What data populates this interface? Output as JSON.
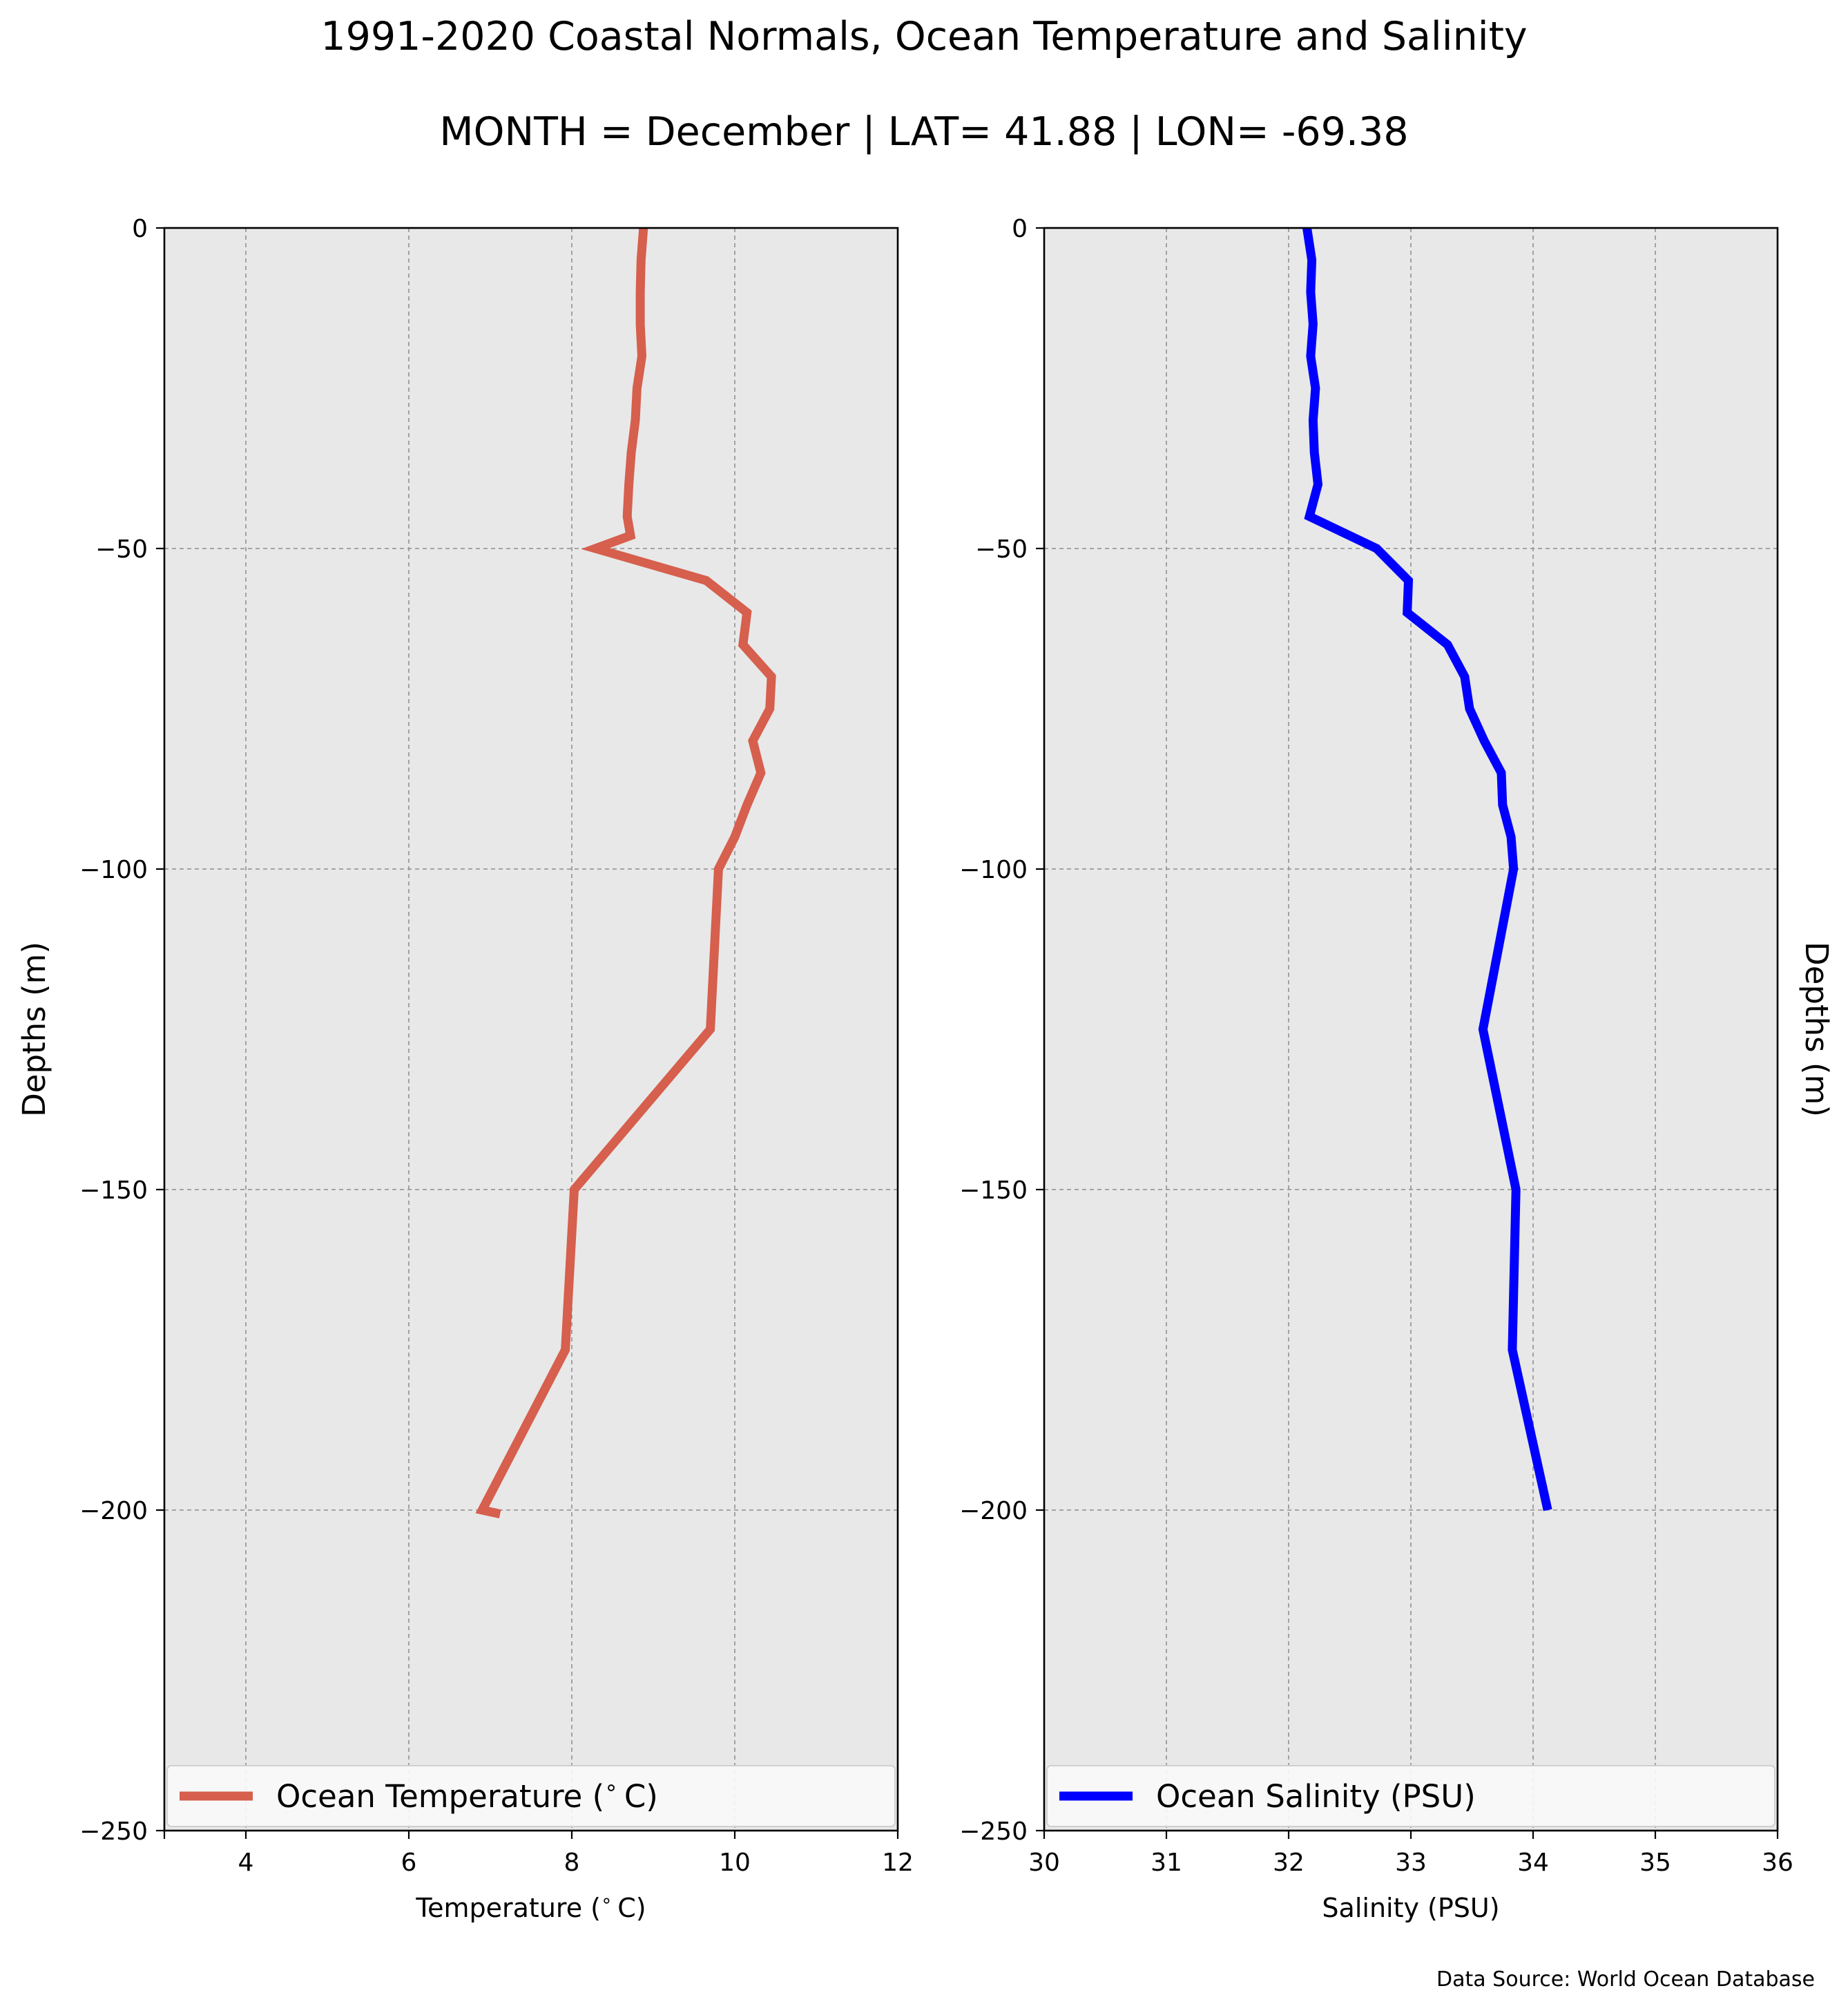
{
  "figure": {
    "title": "1991-2020 Coastal Normals, Ocean Temperature and Salinity",
    "subtitle": "MONTH = December | LAT= 41.88 | LON= -69.38",
    "source": "Data Source: World Ocean Database",
    "background_color": "#ffffff",
    "axes_facecolor": "#e8e8e8",
    "grid_color": "#9a9a9a"
  },
  "chart_data": [
    {
      "type": "line",
      "xlabel": "Temperature ($^\\circ$C)",
      "ylabel": "Depths (m)",
      "ylabel_side": "left",
      "xlim": [
        3,
        12
      ],
      "ylim": [
        -250,
        0
      ],
      "xticks": [
        4,
        6,
        8,
        10,
        12
      ],
      "yticks": [
        0,
        -50,
        -100,
        -150,
        -200,
        -250
      ],
      "xtick_labels": [
        "4",
        "6",
        "8",
        "10",
        "12"
      ],
      "ytick_labels": [
        "0",
        "−50",
        "−100",
        "−150",
        "−200",
        "−250"
      ],
      "grid": true,
      "legend_position": "bottom",
      "series": [
        {
          "name": "Ocean Temperature ($^\\circ$C)",
          "color": "#d65f4d",
          "x": [
            8.88,
            8.85,
            8.84,
            8.84,
            8.86,
            8.8,
            8.78,
            8.73,
            8.7,
            8.68,
            8.72,
            8.29,
            9.65,
            10.15,
            10.1,
            10.45,
            10.43,
            10.22,
            10.32,
            10.15,
            10.0,
            9.8,
            9.7,
            8.03,
            7.92,
            6.9,
            7.12
          ],
          "y": [
            0,
            -5,
            -10,
            -15,
            -20,
            -25,
            -30,
            -35,
            -40,
            -45,
            -48,
            -50,
            -55,
            -60,
            -65,
            -70,
            -75,
            -80,
            -85,
            -90,
            -95,
            -100,
            -125,
            -150,
            -175,
            -200,
            -200.6
          ]
        }
      ]
    },
    {
      "type": "line",
      "xlabel": "Salinity (PSU)",
      "ylabel": "Depths (m)",
      "ylabel_side": "right",
      "xlim": [
        30,
        36
      ],
      "ylim": [
        -250,
        0
      ],
      "xticks": [
        30,
        31,
        32,
        33,
        34,
        35,
        36
      ],
      "yticks": [
        0,
        -50,
        -100,
        -150,
        -200,
        -250
      ],
      "xtick_labels": [
        "30",
        "31",
        "32",
        "33",
        "34",
        "35",
        "36"
      ],
      "ytick_labels": [
        "0",
        "−50",
        "−100",
        "−150",
        "−200",
        "−250"
      ],
      "grid": true,
      "legend_position": "bottom",
      "series": [
        {
          "name": "Ocean Salinity (PSU)",
          "color": "#0000ff",
          "x": [
            32.15,
            32.19,
            32.18,
            32.2,
            32.18,
            32.22,
            32.2,
            32.21,
            32.24,
            32.17,
            32.72,
            32.98,
            32.97,
            33.3,
            33.44,
            33.48,
            33.6,
            33.74,
            33.75,
            33.82,
            33.84,
            33.59,
            33.86,
            33.83,
            34.12
          ],
          "y": [
            0,
            -5,
            -10,
            -15,
            -20,
            -25,
            -30,
            -35,
            -40,
            -45,
            -50,
            -55,
            -60,
            -65,
            -70,
            -75,
            -80,
            -85,
            -90,
            -95,
            -100,
            -125,
            -150,
            -175,
            -200
          ]
        }
      ]
    }
  ]
}
